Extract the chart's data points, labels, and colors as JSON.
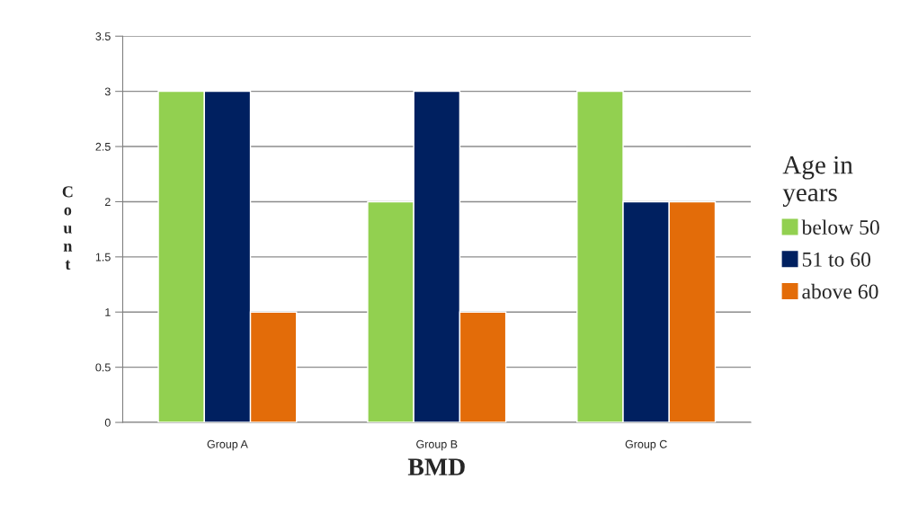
{
  "chart_data": {
    "type": "bar",
    "xlabel": "BMD",
    "ylabel": "Count",
    "legend_title": "Age in years",
    "categories": [
      "Group A",
      "Group B",
      "Group C"
    ],
    "series": [
      {
        "name": "below 50",
        "color": "#92d050",
        "values": [
          3,
          2,
          3
        ]
      },
      {
        "name": "51 to 60",
        "color": "#002060",
        "values": [
          3,
          3,
          2
        ]
      },
      {
        "name": "above 60",
        "color": "#e36c09",
        "values": [
          1,
          1,
          2
        ]
      }
    ],
    "ylim": [
      0,
      3.5
    ],
    "yticks": [
      0,
      0.5,
      1,
      1.5,
      2,
      2.5,
      3,
      3.5
    ],
    "grid": "y",
    "legend": "right"
  }
}
